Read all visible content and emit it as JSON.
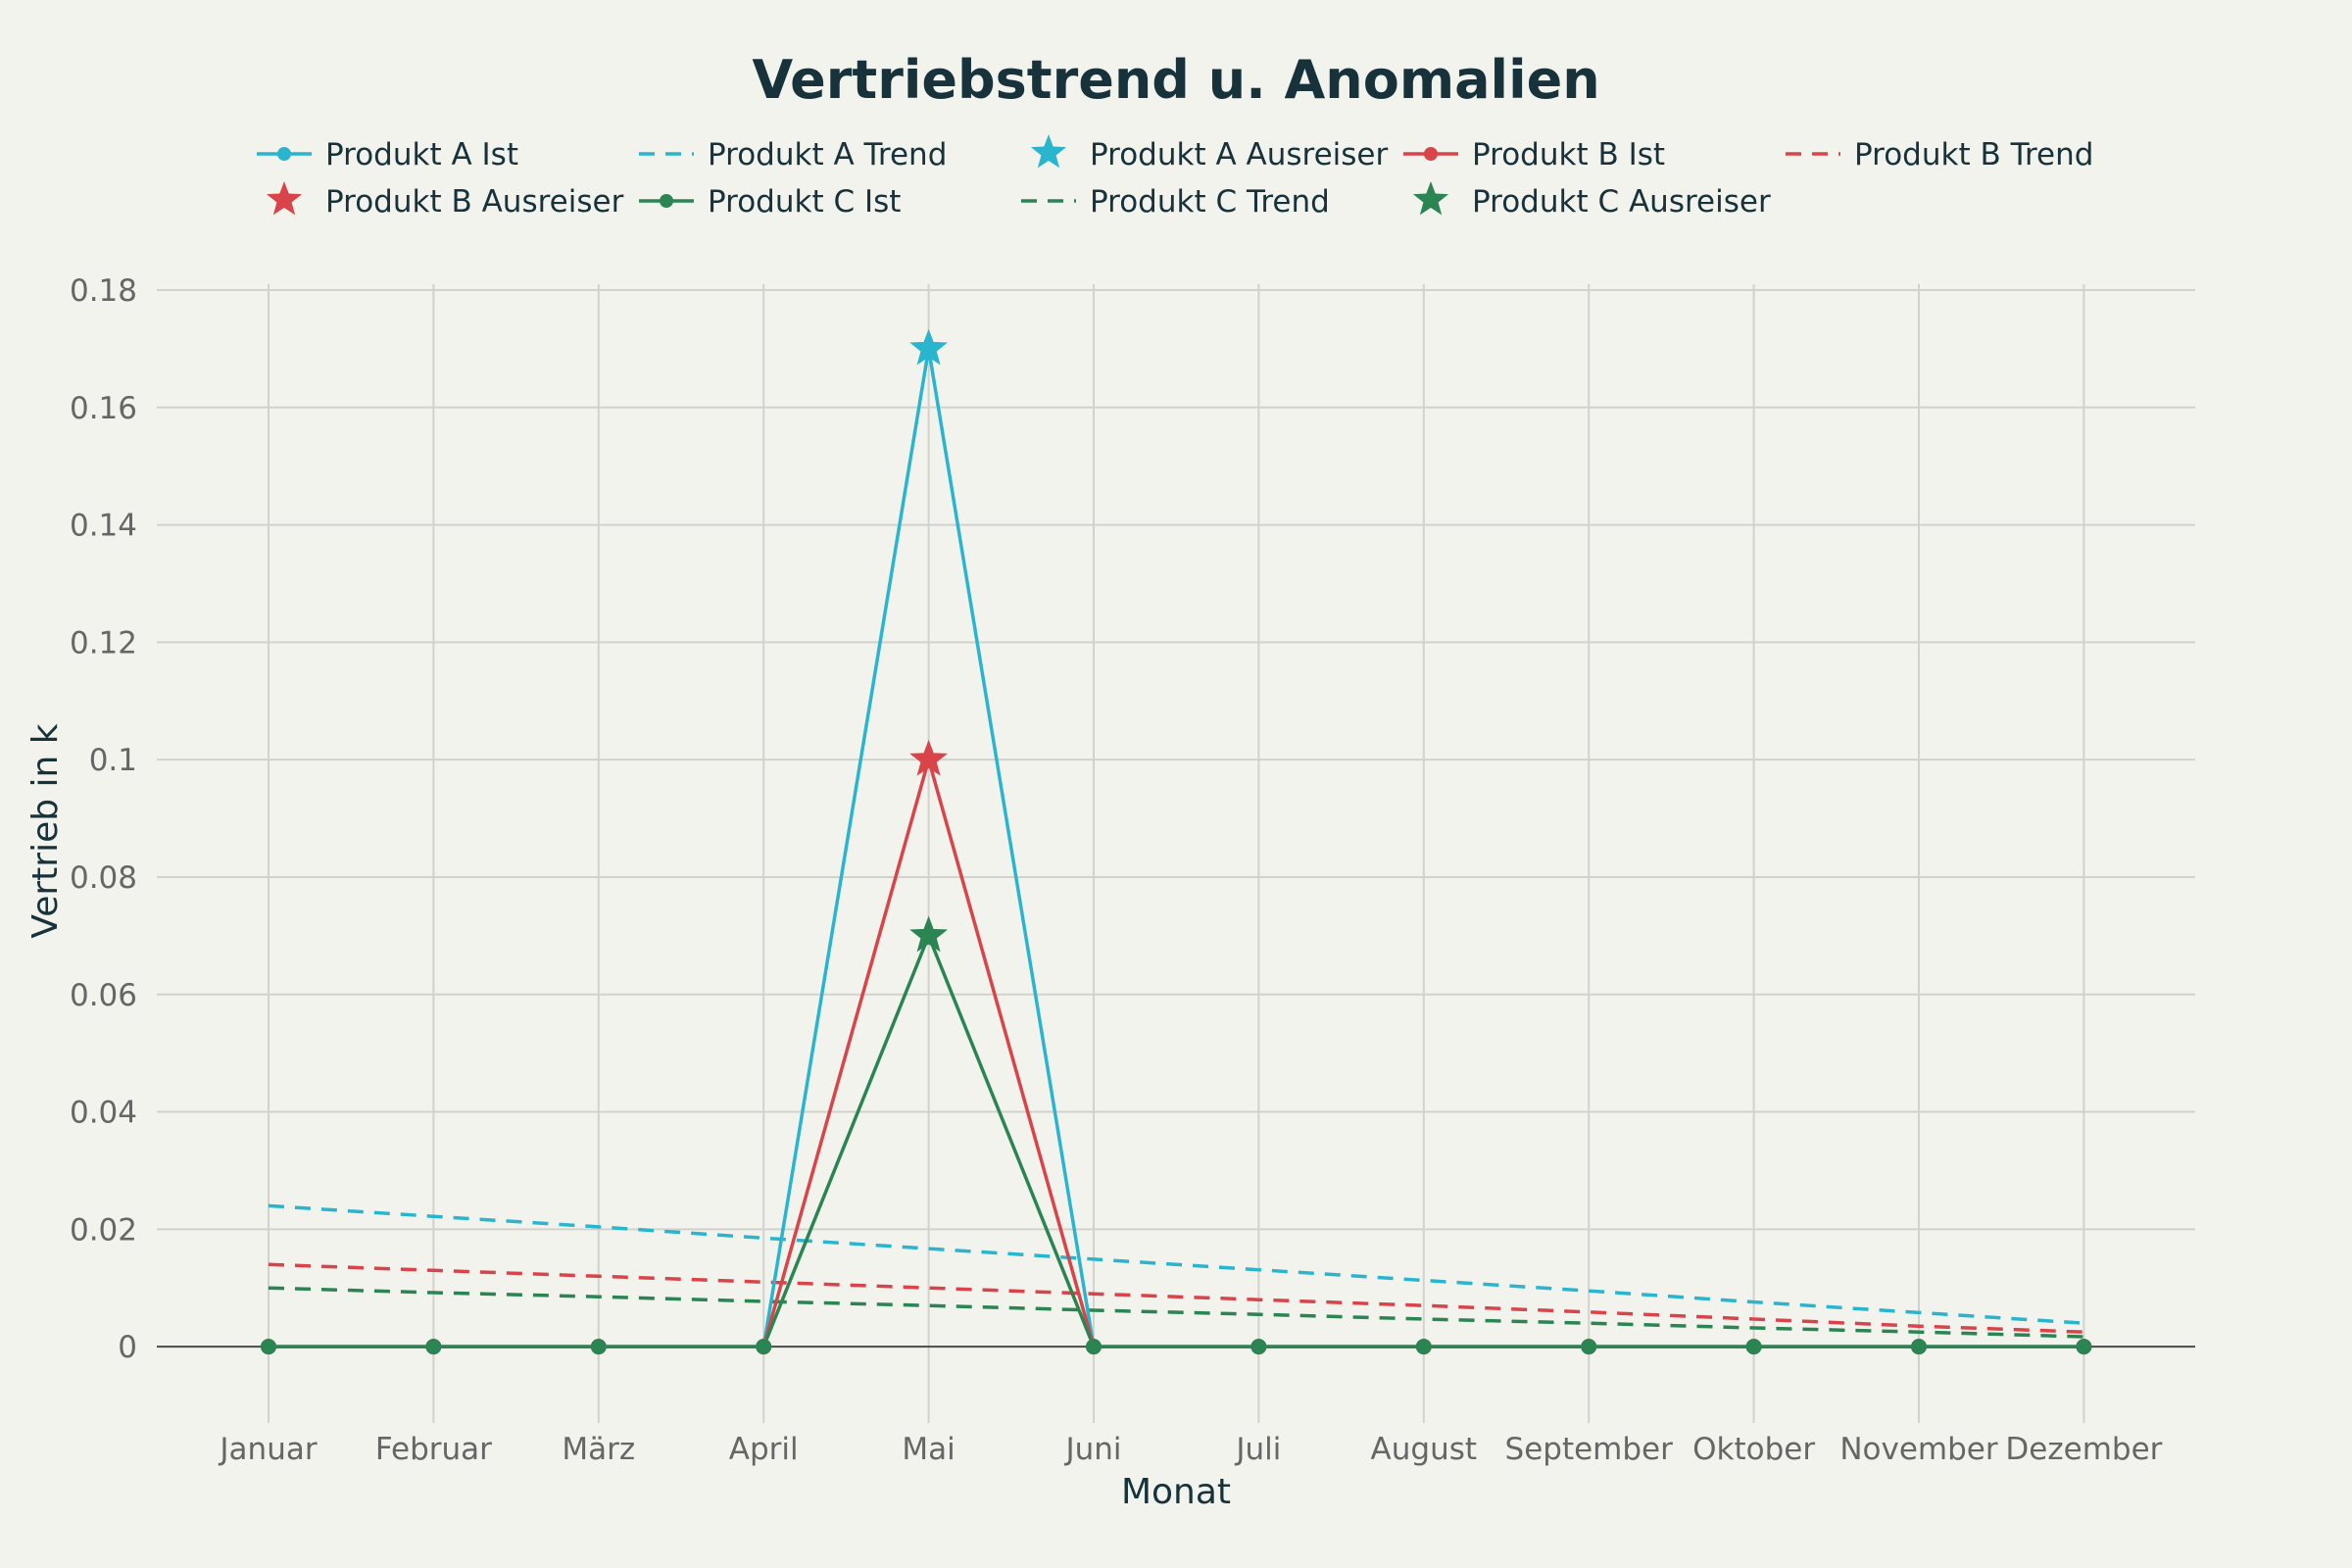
{
  "chart_data": {
    "type": "line",
    "title": "Vertriebstrend u. Anomalien",
    "xlabel": "Monat",
    "ylabel": "Vertrieb in k",
    "categories": [
      "Januar",
      "Februar",
      "März",
      "April",
      "Mai",
      "Juni",
      "Juli",
      "August",
      "September",
      "Oktober",
      "November",
      "Dezember"
    ],
    "ylim": [
      -0.013,
      0.181
    ],
    "yticks": [
      0,
      0.02,
      0.04,
      0.06,
      0.08,
      0.1,
      0.12,
      0.14,
      0.16,
      0.18
    ],
    "ytick_labels": [
      "0",
      "0.02",
      "0.04",
      "0.06",
      "0.08",
      "0.1",
      "0.12",
      "0.14",
      "0.16",
      "0.18"
    ],
    "grid": true,
    "legend_position": "top",
    "series": [
      {
        "name": "Produkt A Ist",
        "kind": "actual",
        "color": "#2ab5cf",
        "values": [
          0,
          0,
          0,
          0,
          0.17,
          0,
          0,
          0,
          0,
          0,
          0,
          0
        ]
      },
      {
        "name": "Produkt A Trend",
        "kind": "trend",
        "color": "#2ab5cf",
        "values": [
          0.024,
          0.0222,
          0.0204,
          0.0185,
          0.0167,
          0.0149,
          0.0131,
          0.0113,
          0.0095,
          0.0076,
          0.0058,
          0.004
        ]
      },
      {
        "name": "Produkt A Ausreiser",
        "kind": "outlier",
        "color": "#2ab5cf",
        "points": [
          {
            "category": "Mai",
            "value": 0.17
          }
        ]
      },
      {
        "name": "Produkt B Ist",
        "kind": "actual",
        "color": "#d9444a",
        "values": [
          0,
          0,
          0,
          0,
          0.1,
          0,
          0,
          0,
          0,
          0,
          0,
          0
        ]
      },
      {
        "name": "Produkt B Trend",
        "kind": "trend",
        "color": "#d9444a",
        "values": [
          0.014,
          0.013,
          0.012,
          0.011,
          0.01,
          0.009,
          0.008,
          0.007,
          0.0059,
          0.0047,
          0.0035,
          0.0025
        ]
      },
      {
        "name": "Produkt B Ausreiser",
        "kind": "outlier",
        "color": "#d9444a",
        "points": [
          {
            "category": "Mai",
            "value": 0.1
          }
        ]
      },
      {
        "name": "Produkt C Ist",
        "kind": "actual",
        "color": "#2a8553",
        "values": [
          0,
          0,
          0,
          0,
          0.07,
          0,
          0,
          0,
          0,
          0,
          0,
          0
        ]
      },
      {
        "name": "Produkt C Trend",
        "kind": "trend",
        "color": "#2a8553",
        "values": [
          0.01,
          0.0092,
          0.0085,
          0.0077,
          0.007,
          0.0062,
          0.0055,
          0.0047,
          0.004,
          0.0032,
          0.0025,
          0.0017
        ]
      },
      {
        "name": "Produkt C Ausreiser",
        "kind": "outlier",
        "color": "#2a8553",
        "points": [
          {
            "category": "Mai",
            "value": 0.07
          }
        ]
      }
    ]
  }
}
